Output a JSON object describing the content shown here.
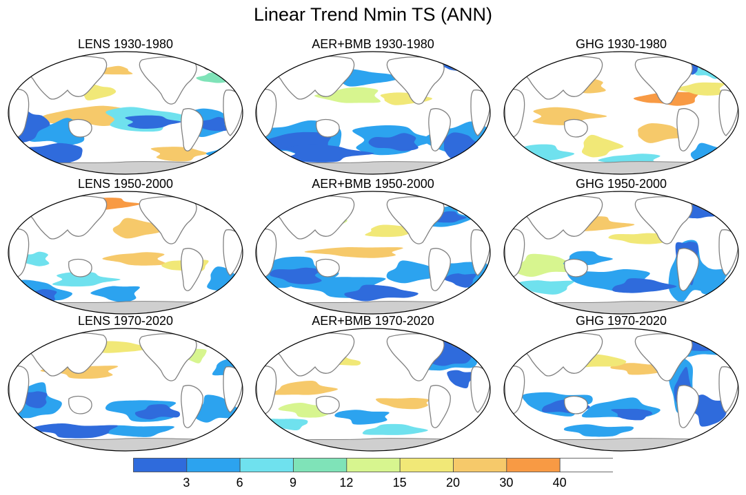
{
  "figure": {
    "title": "Linear Trend Nmin TS (ANN)"
  },
  "panels": [
    {
      "title": "LENS 1930-1980"
    },
    {
      "title": "AER+BMB 1930-1980"
    },
    {
      "title": "GHG 1930-1980"
    },
    {
      "title": "LENS 1950-2000"
    },
    {
      "title": "AER+BMB 1950-2000"
    },
    {
      "title": "GHG 1950-2000"
    },
    {
      "title": "LENS 1970-2020"
    },
    {
      "title": "AER+BMB 1970-2020"
    },
    {
      "title": "GHG 1970-2020"
    }
  ],
  "colorbar": {
    "labels": [
      "3",
      "6",
      "9",
      "12",
      "15",
      "20",
      "30",
      "40"
    ],
    "colors": [
      "#2f6bdc",
      "#2ca3ef",
      "#6fe1ee",
      "#7fe3b8",
      "#d7f58f",
      "#f1e877",
      "#f6c96a",
      "#f89a44",
      "#ffffff"
    ]
  },
  "colors": {
    "land": "#ffffff",
    "antarctica": "#cfcfcf",
    "coastline": "#808080",
    "frame": "#000000"
  }
}
